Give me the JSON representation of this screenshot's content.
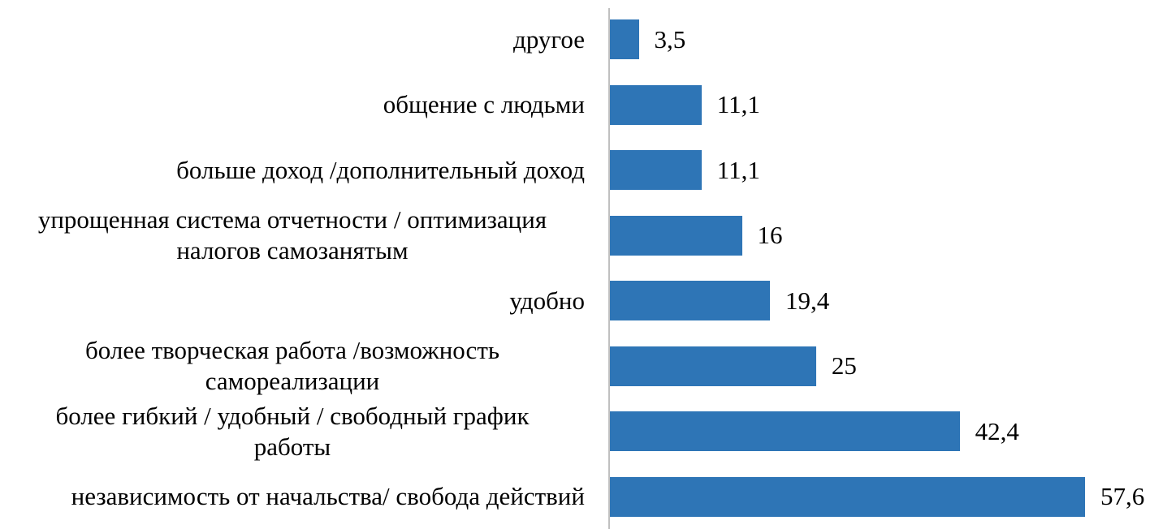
{
  "chart_data": {
    "type": "bar",
    "orientation": "horizontal",
    "categories": [
      "независимость от начальства/ свобода действий",
      "более гибкий / удобный / свободный график\nработы",
      "более творческая работа /возможность\nсамореализации",
      "удобно",
      "упрощенная система отчетности / оптимизация\nналогов самозанятым",
      "больше доход /дополнительный доход",
      "общение с людьми",
      "другое"
    ],
    "values": [
      57.6,
      42.4,
      25,
      19.4,
      16,
      11.1,
      11.1,
      3.5
    ],
    "value_labels": [
      "57,6",
      "42,4",
      "25",
      "19,4",
      "16",
      "11,1",
      "11,1",
      "3,5"
    ],
    "xlim": [
      0,
      60
    ],
    "grid": false,
    "legend": "none",
    "bar_color": "#2e75b6"
  }
}
